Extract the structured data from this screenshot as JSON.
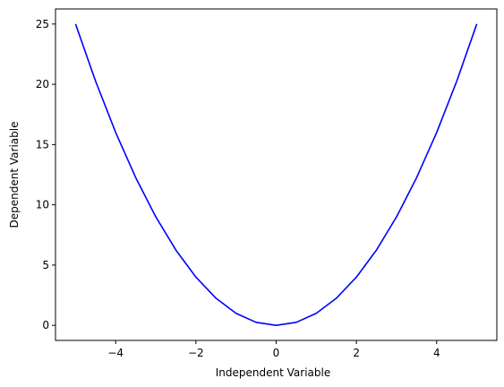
{
  "chart_data": {
    "type": "line",
    "title": "",
    "xlabel": "Independent Variable",
    "ylabel": "Dependent Variable",
    "xlim": [
      -5.5,
      5.5
    ],
    "ylim": [
      -1.25,
      26.25
    ],
    "xticks": [
      -4,
      -2,
      0,
      2,
      4
    ],
    "yticks": [
      0,
      5,
      10,
      15,
      20,
      25
    ],
    "xtick_labels": [
      "−4",
      "−2",
      "0",
      "2",
      "4"
    ],
    "ytick_labels": [
      "0",
      "5",
      "10",
      "15",
      "20",
      "25"
    ],
    "grid": false,
    "legend": "none",
    "series": [
      {
        "color": "#0000ff",
        "x": [
          -5,
          -4.5,
          -4,
          -3.5,
          -3,
          -2.5,
          -2,
          -1.5,
          -1,
          -0.5,
          0,
          0.5,
          1,
          1.5,
          2,
          2.5,
          3,
          3.5,
          4,
          4.5,
          5
        ],
        "y": [
          25,
          20.25,
          16,
          12.25,
          9,
          6.25,
          4,
          2.25,
          1,
          0.25,
          0,
          0.25,
          1,
          2.25,
          4,
          6.25,
          9,
          12.25,
          16,
          20.25,
          25
        ]
      }
    ]
  }
}
